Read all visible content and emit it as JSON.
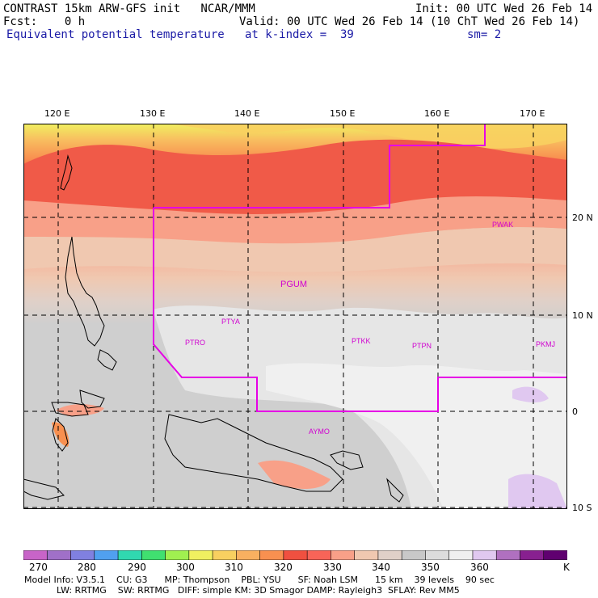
{
  "header": {
    "line1_left": "CONTRAST 15km ARW-GFS init   NCAR/MMM",
    "line1_right": "Init: 00 UTC Wed 26 Feb 14",
    "line2_left": "Fcst:    0 h",
    "line2_right": "Valid: 00 UTC Wed 26 Feb 14 (10 ChT Wed 26 Feb 14)",
    "line3_left": "Equivalent potential temperature",
    "line3_mid": "at k-index =  39",
    "line3_right": "sm= 2"
  },
  "map": {
    "lon_labels": [
      "120 E",
      "130 E",
      "140 E",
      "150 E",
      "160 E",
      "170 E"
    ],
    "lat_labels": [
      "20 N",
      "10 N",
      "0",
      "10 S"
    ],
    "stations": [
      "PGUM",
      "PTYA",
      "PTRO",
      "PTKK",
      "PTPN",
      "PKMJ",
      "PWAK",
      "AYMO"
    ],
    "boundary_color": "#e600e6"
  },
  "colorbar": {
    "labels": [
      "270",
      "280",
      "290",
      "300",
      "310",
      "320",
      "330",
      "340",
      "350",
      "360",
      "K"
    ],
    "colors": [
      "#c864c8",
      "#a070c8",
      "#8080e0",
      "#50a0f0",
      "#30d8b0",
      "#40e070",
      "#a0f050",
      "#f0f060",
      "#f8d060",
      "#f8b060",
      "#f89050",
      "#f05040",
      "#f86458",
      "#f8a088",
      "#f0c8b0",
      "#e0d0c8",
      "#c8c8c8",
      "#dcdcdc",
      "#f0f0f0",
      "#e0c8f0",
      "#b070c0",
      "#882090",
      "#600070"
    ]
  },
  "model_info": {
    "line1": "Model Info: V3.5.1    CU: G3      MP: Thompson    PBL: YSU      SF: Noah LSM      15 km    39 levels    90 sec",
    "line2": "LW: RRTMG    SW: RRTMG   DIFF: simple KM: 3D Smagor DAMP: Rayleigh3  SFLAY: Rev MM5"
  }
}
